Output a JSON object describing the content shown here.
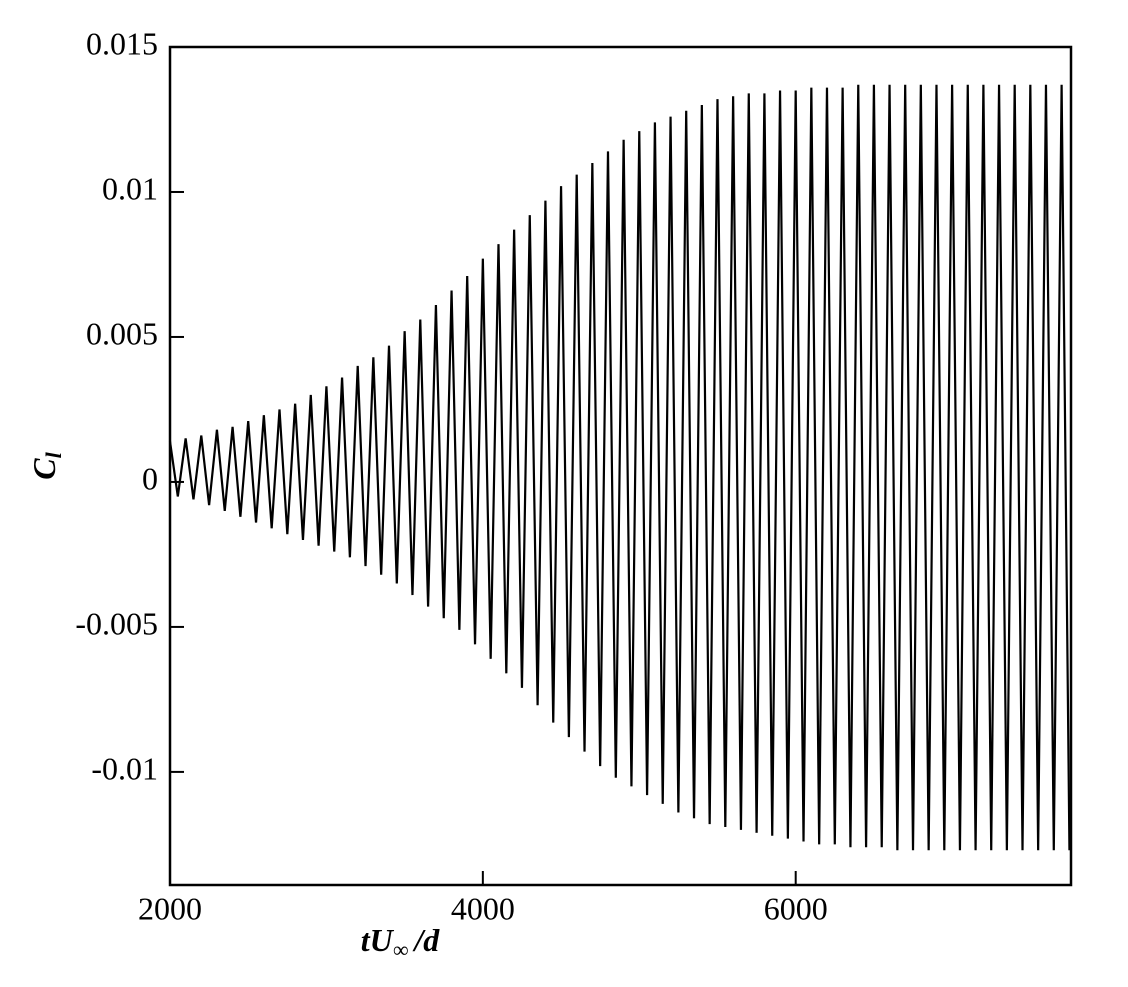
{
  "chart_data": {
    "type": "line",
    "xlabel": [
      "tU",
      "∞",
      "/d"
    ],
    "ylabel": [
      "C",
      "l"
    ],
    "xlim": [
      2000,
      7760
    ],
    "xticks": [
      2000,
      4000,
      6000
    ],
    "ylim": [
      -0.0139,
      0.015
    ],
    "yticks": [
      -0.01,
      -0.005,
      0,
      0.005,
      0.01,
      0.015
    ],
    "color": "#000000",
    "x": [
      2000,
      2050,
      2100,
      2150,
      2200,
      2250,
      2300,
      2350,
      2400,
      2450,
      2500,
      2550,
      2600,
      2650,
      2700,
      2750,
      2800,
      2850,
      2900,
      2950,
      3000,
      3050,
      3100,
      3150,
      3200,
      3250,
      3300,
      3350,
      3400,
      3450,
      3500,
      3550,
      3600,
      3650,
      3700,
      3750,
      3800,
      3850,
      3900,
      3950,
      4000,
      4050,
      4100,
      4150,
      4200,
      4250,
      4300,
      4350,
      4400,
      4450,
      4500,
      4550,
      4600,
      4650,
      4700,
      4750,
      4800,
      4850,
      4900,
      4950,
      5000,
      5050,
      5100,
      5150,
      5200,
      5250,
      5300,
      5350,
      5400,
      5450,
      5500,
      5550,
      5600,
      5650,
      5700,
      5750,
      5800,
      5850,
      5900,
      5950,
      6000,
      6050,
      6100,
      6150,
      6200,
      6250,
      6300,
      6350,
      6400,
      6450,
      6500,
      6550,
      6600,
      6650,
      6700,
      6750,
      6800,
      6850,
      6900,
      6950,
      7000,
      7050,
      7100,
      7150,
      7200,
      7250,
      7300,
      7350,
      7400,
      7450,
      7500,
      7550,
      7600,
      7650,
      7700,
      7750
    ],
    "values": [
      0.0014,
      -0.0005,
      0.0015,
      -0.0006,
      0.0016,
      -0.0008,
      0.0018,
      -0.001,
      0.0019,
      -0.0012,
      0.0021,
      -0.0014,
      0.0023,
      -0.0016,
      0.0025,
      -0.0018,
      0.0027,
      -0.002,
      0.003,
      -0.0022,
      0.0033,
      -0.0024,
      0.0036,
      -0.0026,
      0.004,
      -0.0029,
      0.0043,
      -0.0032,
      0.0047,
      -0.0035,
      0.0052,
      -0.0039,
      0.0056,
      -0.0043,
      0.0061,
      -0.0047,
      0.0066,
      -0.0051,
      0.0071,
      -0.0056,
      0.0077,
      -0.0061,
      0.0082,
      -0.0066,
      0.0087,
      -0.0071,
      0.0092,
      -0.0077,
      0.0097,
      -0.0083,
      0.0102,
      -0.0088,
      0.0106,
      -0.0093,
      0.011,
      -0.0098,
      0.0114,
      -0.0102,
      0.0118,
      -0.0105,
      0.0121,
      -0.0108,
      0.0124,
      -0.0111,
      0.0126,
      -0.0114,
      0.0128,
      -0.0116,
      0.013,
      -0.0118,
      0.0132,
      -0.0119,
      0.0133,
      -0.012,
      0.0134,
      -0.0121,
      0.0134,
      -0.0122,
      0.0135,
      -0.0123,
      0.0135,
      -0.0124,
      0.0136,
      -0.0125,
      0.0136,
      -0.0125,
      0.0136,
      -0.0126,
      0.0137,
      -0.0126,
      0.0137,
      -0.0126,
      0.0137,
      -0.0127,
      0.0137,
      -0.0127,
      0.0137,
      -0.0127,
      0.0137,
      -0.0127,
      0.0137,
      -0.0127,
      0.0137,
      -0.0127,
      0.0137,
      -0.0127,
      0.0137,
      -0.0127,
      0.0137,
      -0.0127,
      0.0137,
      -0.0127,
      0.0137,
      -0.0127,
      0.0137,
      -0.0127
    ]
  }
}
